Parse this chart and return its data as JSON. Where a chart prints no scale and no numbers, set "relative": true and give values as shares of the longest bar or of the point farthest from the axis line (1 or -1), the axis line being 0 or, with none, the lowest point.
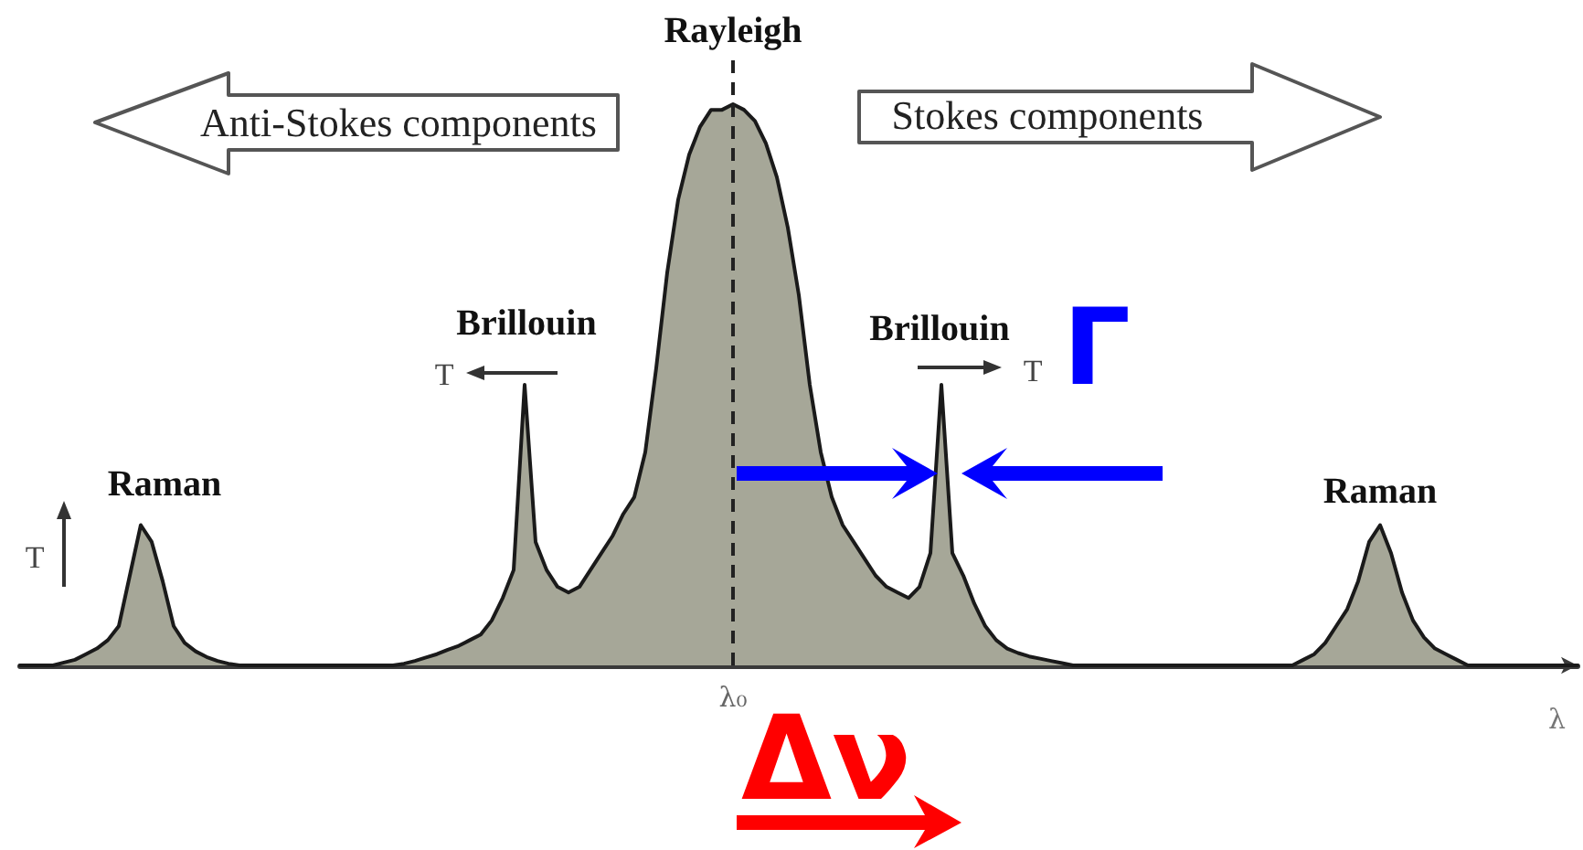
{
  "chart_data": {
    "type": "area",
    "relative": true,
    "xlabel": "λ",
    "categories": [
      null,
      null,
      null,
      null,
      null,
      null,
      null,
      null,
      null,
      null,
      null,
      null,
      null,
      null,
      null,
      null,
      null,
      null,
      null,
      null,
      null,
      null,
      null,
      null,
      null,
      null,
      null,
      null,
      null,
      null,
      null,
      null,
      null,
      null,
      null,
      null,
      null,
      null,
      null,
      null,
      null,
      null,
      null,
      null,
      null,
      null,
      null,
      null,
      null,
      null,
      null,
      null,
      null,
      null,
      null,
      null,
      null,
      null,
      null,
      null,
      null,
      null,
      null,
      null,
      null,
      null,
      null,
      null,
      null,
      null,
      null,
      null,
      null,
      null,
      null,
      null,
      null,
      null,
      null,
      null,
      null,
      null,
      null,
      null,
      null,
      null,
      null,
      null,
      null,
      null,
      null,
      null,
      null,
      null,
      null,
      null,
      null,
      null,
      null,
      null,
      null,
      null,
      null,
      null,
      null,
      null,
      null,
      null,
      null,
      null,
      null,
      null,
      null,
      null,
      null,
      null,
      null,
      null,
      null,
      null,
      null,
      null,
      null,
      null,
      null,
      null,
      null,
      null,
      null,
      null,
      null,
      null,
      null,
      null,
      null,
      null,
      null,
      null,
      null,
      null,
      null,
      null,
      null
    ],
    "series": [
      {
        "color": "#a6a798",
        "values": [
          0,
          0,
          0,
          0,
          0.005,
          0.01,
          0.02,
          0.03,
          0.045,
          0.07,
          0.16,
          0.25,
          0.22,
          0.15,
          0.07,
          0.04,
          0.025,
          0.015,
          0.008,
          0.003,
          0,
          0,
          0,
          0,
          0,
          0,
          0,
          0,
          0,
          0,
          0,
          0,
          0,
          0,
          0,
          0.003,
          0.008,
          0.014,
          0.02,
          0.028,
          0.035,
          0.045,
          0.055,
          0.08,
          0.12,
          0.17,
          0.5,
          0.22,
          0.17,
          0.14,
          0.13,
          0.14,
          0.17,
          0.2,
          0.23,
          0.27,
          0.3,
          0.38,
          0.53,
          0.7,
          0.83,
          0.91,
          0.96,
          0.99,
          0.99,
          1,
          0.99,
          0.97,
          0.93,
          0.87,
          0.78,
          0.66,
          0.5,
          0.38,
          0.3,
          0.25,
          0.22,
          0.19,
          0.16,
          0.14,
          0.13,
          0.12,
          0.14,
          0.2,
          0.5,
          0.2,
          0.16,
          0.11,
          0.07,
          0.045,
          0.03,
          0.022,
          0.016,
          0.012,
          0.008,
          0.004,
          0,
          0,
          0,
          0,
          0,
          0,
          0,
          0,
          0,
          0,
          0,
          0,
          0,
          0,
          0,
          0,
          0,
          0,
          0,
          0,
          0,
          0.01,
          0.02,
          0.04,
          0.07,
          0.1,
          0.15,
          0.22,
          0.25,
          0.2,
          0.13,
          0.08,
          0.05,
          0.03,
          0.02,
          0.01,
          0,
          0,
          0,
          0,
          0,
          0,
          0,
          0,
          0,
          0,
          0
        ]
      }
    ],
    "ref_lines": [
      {
        "axis": "x",
        "value": "λ₀",
        "label": "Rayleigh",
        "line_style": "dashed",
        "color": "#222222"
      }
    ],
    "annotations": [
      "Anti-Stokes components",
      "Stokes components",
      "Brillouin",
      "Brillouin",
      "Raman",
      "Raman",
      "T",
      "T",
      "T",
      "Γ",
      "Δν"
    ]
  }
}
